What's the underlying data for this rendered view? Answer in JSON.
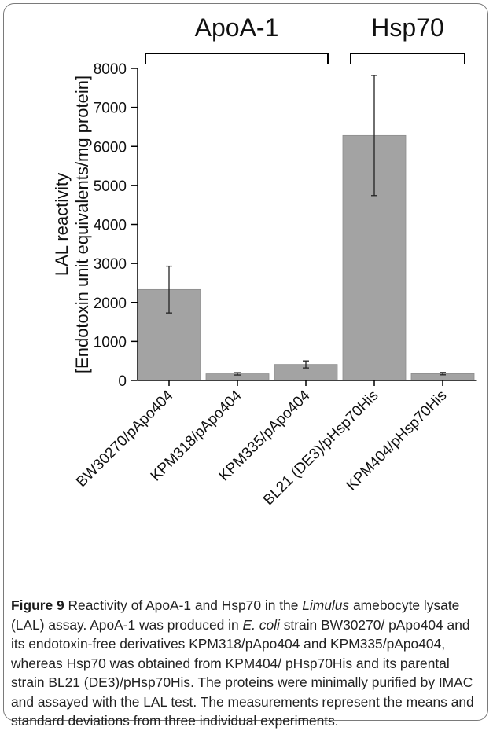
{
  "chart_data": {
    "type": "bar",
    "categories": [
      "BW30270/pApo404",
      "KPM318/pApo404",
      "KPM335/pApo404",
      "BL21 (DE3)/pHsp70His",
      "KPM404/pHsp70His"
    ],
    "values": [
      2330,
      170,
      410,
      6280,
      175
    ],
    "error": [
      600,
      30,
      90,
      1540,
      30
    ],
    "ylim": [
      0,
      8000
    ],
    "yticks": [
      "0",
      "1000",
      "2000",
      "3000",
      "4000",
      "5000",
      "6000",
      "7000",
      "8000"
    ],
    "ylabel_line1": "LAL reactivity",
    "ylabel_line2": "[Endotoxin unit equivalents/mg protein]",
    "groups": [
      {
        "label": "ApoA-1",
        "first": 0,
        "last": 2
      },
      {
        "label": "Hsp70",
        "first": 3,
        "last": 4
      }
    ],
    "bar_color": "#a3a3a3",
    "grid": false
  },
  "caption": {
    "figure_label": "Figure 9",
    "t1": " Reactivity of ApoA-1 and Hsp70 in the ",
    "t2": "Limulus",
    "t3": " amebocyte lysate (LAL) assay. ApoA-1 was produced in ",
    "t4": "E. coli",
    "t5": " strain BW30270/ pApo404 and its endotoxin-free derivatives KPM318/pApo404 and KPM335/pApo404, whereas Hsp70 was obtained from KPM404/ pHsp70His and its parental strain BL21 (DE3)/pHsp70His. The proteins were minimally purified by IMAC and assayed with the LAL test. The measurements represent the means and standard deviations from three individual experiments."
  }
}
